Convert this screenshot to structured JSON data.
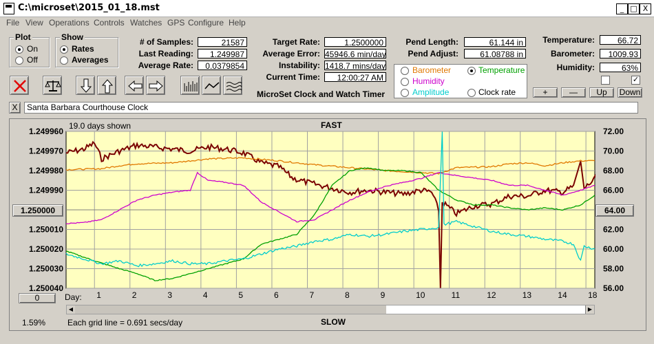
{
  "window": {
    "title": "C:\\microset\\2015_01_18.mst",
    "min": "_",
    "max": "□",
    "close": "X"
  },
  "menu": [
    "File",
    "View",
    "Operations",
    "Controls",
    "Watches",
    "GPS",
    "Configure",
    "Help"
  ],
  "plot_group": {
    "title": "Plot",
    "on": "On",
    "off": "Off"
  },
  "show_group": {
    "title": "Show",
    "rates": "Rates",
    "averages": "Averages"
  },
  "stats": {
    "samples_label": "# of Samples:",
    "samples": "21587",
    "last_label": "Last Reading:",
    "last": "1.249987",
    "avgrate_label": "Average Rate:",
    "avgrate": "0.0379854",
    "target_label": "Target Rate:",
    "target": "1.2500000",
    "avgerr_label": "Average Error:",
    "avgerr": "45946.6 min/day",
    "instab_label": "Instability:",
    "instab": "1418.7 mins/day",
    "time_label": "Current Time:",
    "time": "12:00:27 AM",
    "pendlen_label": "Pend Length:",
    "pendlen": "61.144 in",
    "pendadj_label": "Pend Adjust:",
    "pendadj": "61.08788 in",
    "temp_label": "Temperature:",
    "temp": "66.72",
    "baro_label": "Barometer:",
    "baro": "1009.93",
    "humid_label": "Humidity:",
    "humid": "63%"
  },
  "app_name": "MicroSet Clock and Watch Timer",
  "sensor_options": {
    "barometer": "Barometer",
    "temperature": "Temperature",
    "humidity": "Humidity",
    "amplitude": "Amplitude",
    "clockrate": "Clock rate",
    "colors": {
      "barometer": "#e07800",
      "temperature": "#00a000",
      "humidity": "#cc00cc",
      "amplitude": "#00cccc",
      "clockrate": "#000000"
    }
  },
  "adj_buttons": {
    "plus": "+",
    "minus": "—",
    "up": "Up",
    "down": "Down"
  },
  "watch_name": "Santa Barbara Courthouse Clock",
  "watch_close": "X",
  "graph": {
    "days_shown": "19.0 days shown",
    "fast": "FAST",
    "slow": "SLOW",
    "center_left": "1.250000",
    "center_right": "64.00",
    "bottom_btn": "0",
    "day_label": "Day:",
    "percent": "1.59%",
    "grid_note": "Each grid line = 0.691 secs/day"
  },
  "chart_data": {
    "type": "line",
    "x_ticks": [
      "1",
      "2",
      "3",
      "4",
      "5",
      "6",
      "7",
      "8",
      "9",
      "10",
      "11",
      "12",
      "13",
      "14",
      "18"
    ],
    "y_left_ticks": [
      "1.249960",
      "1.249970",
      "1.249980",
      "1.249990",
      "1.250000",
      "1.250010",
      "1.250020",
      "1.250030",
      "1.250040"
    ],
    "y_right_ticks": [
      "72.00",
      "70.00",
      "68.00",
      "66.00",
      "64.00",
      "62.00",
      "60.00",
      "58.00",
      "56.00"
    ],
    "y_left_range": [
      1.24996,
      1.25004
    ],
    "y_right_range": [
      56,
      72
    ],
    "x_range": [
      0,
      14.9
    ],
    "grid": true,
    "series": [
      {
        "color": "#7a0000",
        "axis": "left",
        "values": [
          [
            0,
            1.249971
          ],
          [
            0.5,
            1.249969
          ],
          [
            0.8,
            1.249966
          ],
          [
            1,
            1.249974
          ],
          [
            1.5,
            1.24997
          ],
          [
            2,
            1.249967
          ],
          [
            2.5,
            1.249968
          ],
          [
            3,
            1.249969
          ],
          [
            3.5,
            1.24997
          ],
          [
            4,
            1.249968
          ],
          [
            4.5,
            1.249969
          ],
          [
            5,
            1.249971
          ],
          [
            5.5,
            1.249976
          ],
          [
            6,
            1.249978
          ],
          [
            6.4,
            1.249984
          ],
          [
            6.8,
            1.249986
          ],
          [
            7.5,
            1.249989
          ],
          [
            8,
            1.249991
          ],
          [
            8.5,
            1.24999
          ],
          [
            9,
            1.249991
          ],
          [
            9.5,
            1.249992
          ],
          [
            10,
            1.24999
          ],
          [
            10.3,
            1.249991
          ],
          [
            10.5,
            1.25
          ],
          [
            10.55,
            1.25004
          ],
          [
            10.6,
            1.249996
          ],
          [
            11,
            1.250002
          ],
          [
            11.5,
            1.249998
          ],
          [
            12,
            1.249997
          ],
          [
            12.5,
            1.249993
          ],
          [
            13,
            1.249993
          ],
          [
            13.5,
            1.24999
          ],
          [
            14,
            1.249991
          ],
          [
            14.3,
            1.249988
          ],
          [
            14.5,
            1.249976
          ],
          [
            14.6,
            1.249989
          ],
          [
            15,
            1.249983
          ]
        ]
      },
      {
        "color": "#e07800",
        "axis": "right",
        "values": [
          [
            0,
            68.1
          ],
          [
            1,
            68.2
          ],
          [
            1.5,
            68.5
          ],
          [
            2,
            68.7
          ],
          [
            3,
            68.8
          ],
          [
            4,
            69.2
          ],
          [
            5,
            69.3
          ],
          [
            6,
            69.0
          ],
          [
            7,
            68.6
          ],
          [
            8,
            68.3
          ],
          [
            9,
            68.0
          ],
          [
            10,
            67.8
          ],
          [
            10.5,
            67.7
          ],
          [
            11,
            68.3
          ],
          [
            12,
            68.4
          ],
          [
            12.5,
            68.7
          ],
          [
            13,
            68.8
          ],
          [
            13.5,
            68.5
          ],
          [
            14,
            68.8
          ],
          [
            14.5,
            69.0
          ],
          [
            14.9,
            69.0
          ]
        ]
      },
      {
        "color": "#00a000",
        "axis": "right",
        "values": [
          [
            0,
            59.8
          ],
          [
            0.8,
            58.8
          ],
          [
            1.5,
            58.0
          ],
          [
            2,
            57.5
          ],
          [
            2.5,
            56.8
          ],
          [
            3,
            57.0
          ],
          [
            4,
            58.0
          ],
          [
            4.5,
            58.5
          ],
          [
            5,
            59.0
          ],
          [
            5.5,
            60.5
          ],
          [
            6,
            61.0
          ],
          [
            6.5,
            61.5
          ],
          [
            7,
            63.5
          ],
          [
            7.5,
            66.5
          ],
          [
            8,
            68.0
          ],
          [
            8.5,
            68.3
          ],
          [
            9,
            68.0
          ],
          [
            9.5,
            68.0
          ],
          [
            10,
            67.8
          ],
          [
            10.5,
            66.0
          ],
          [
            11,
            65.0
          ],
          [
            11.5,
            64.5
          ],
          [
            12,
            64.5
          ],
          [
            12.5,
            64.2
          ],
          [
            13,
            64.0
          ],
          [
            13.5,
            64.2
          ],
          [
            14,
            64.0
          ],
          [
            14.5,
            64.5
          ],
          [
            14.9,
            65.5
          ]
        ]
      },
      {
        "color": "#cc00cc",
        "axis": "right",
        "values": [
          [
            0,
            62.6
          ],
          [
            0.5,
            62.7
          ],
          [
            1,
            63.0
          ],
          [
            1.5,
            64.0
          ],
          [
            2,
            65.0
          ],
          [
            2.5,
            65.5
          ],
          [
            3,
            65.8
          ],
          [
            3.5,
            66.0
          ],
          [
            3.7,
            67.8
          ],
          [
            4,
            67.0
          ],
          [
            4.5,
            66.8
          ],
          [
            5,
            66.5
          ],
          [
            5.5,
            64.8
          ],
          [
            6,
            63.8
          ],
          [
            6.5,
            62.8
          ],
          [
            7,
            63.0
          ],
          [
            7.5,
            64.0
          ],
          [
            8,
            65.0
          ],
          [
            8.5,
            65.8
          ],
          [
            9,
            66.4
          ],
          [
            9.5,
            66.8
          ],
          [
            10,
            67.2
          ],
          [
            10.5,
            67.8
          ],
          [
            11,
            67.5
          ],
          [
            12,
            67.0
          ],
          [
            12.5,
            66.5
          ],
          [
            13,
            66.5
          ],
          [
            13.5,
            66.0
          ],
          [
            14,
            65.5
          ],
          [
            14.5,
            66.0
          ],
          [
            14.9,
            66.5
          ]
        ]
      },
      {
        "color": "#00cccc",
        "axis": "right",
        "values": [
          [
            0,
            59.5
          ],
          [
            0.5,
            59.0
          ],
          [
            1,
            58.5
          ],
          [
            1.5,
            58.8
          ],
          [
            2,
            58.3
          ],
          [
            2.5,
            58.5
          ],
          [
            3,
            58.8
          ],
          [
            3.5,
            58.5
          ],
          [
            4,
            58.5
          ],
          [
            4.5,
            58.8
          ],
          [
            5,
            59.0
          ],
          [
            5.5,
            59.5
          ],
          [
            6,
            60.0
          ],
          [
            6.5,
            60.3
          ],
          [
            7,
            60.8
          ],
          [
            7.5,
            61.0
          ],
          [
            8,
            61.5
          ],
          [
            8.5,
            61.3
          ],
          [
            9,
            61.5
          ],
          [
            9.5,
            61.8
          ],
          [
            10,
            62.0
          ],
          [
            10.5,
            62.2
          ],
          [
            10.6,
            72.0
          ],
          [
            10.65,
            62.5
          ],
          [
            11,
            62.8
          ],
          [
            11.5,
            62.3
          ],
          [
            12,
            61.8
          ],
          [
            12.5,
            61.5
          ],
          [
            13,
            61.3
          ],
          [
            13.5,
            61.0
          ],
          [
            14,
            60.8
          ],
          [
            14.3,
            60.5
          ],
          [
            14.5,
            58.8
          ],
          [
            14.6,
            60.3
          ],
          [
            14.9,
            60.0
          ]
        ]
      }
    ]
  }
}
